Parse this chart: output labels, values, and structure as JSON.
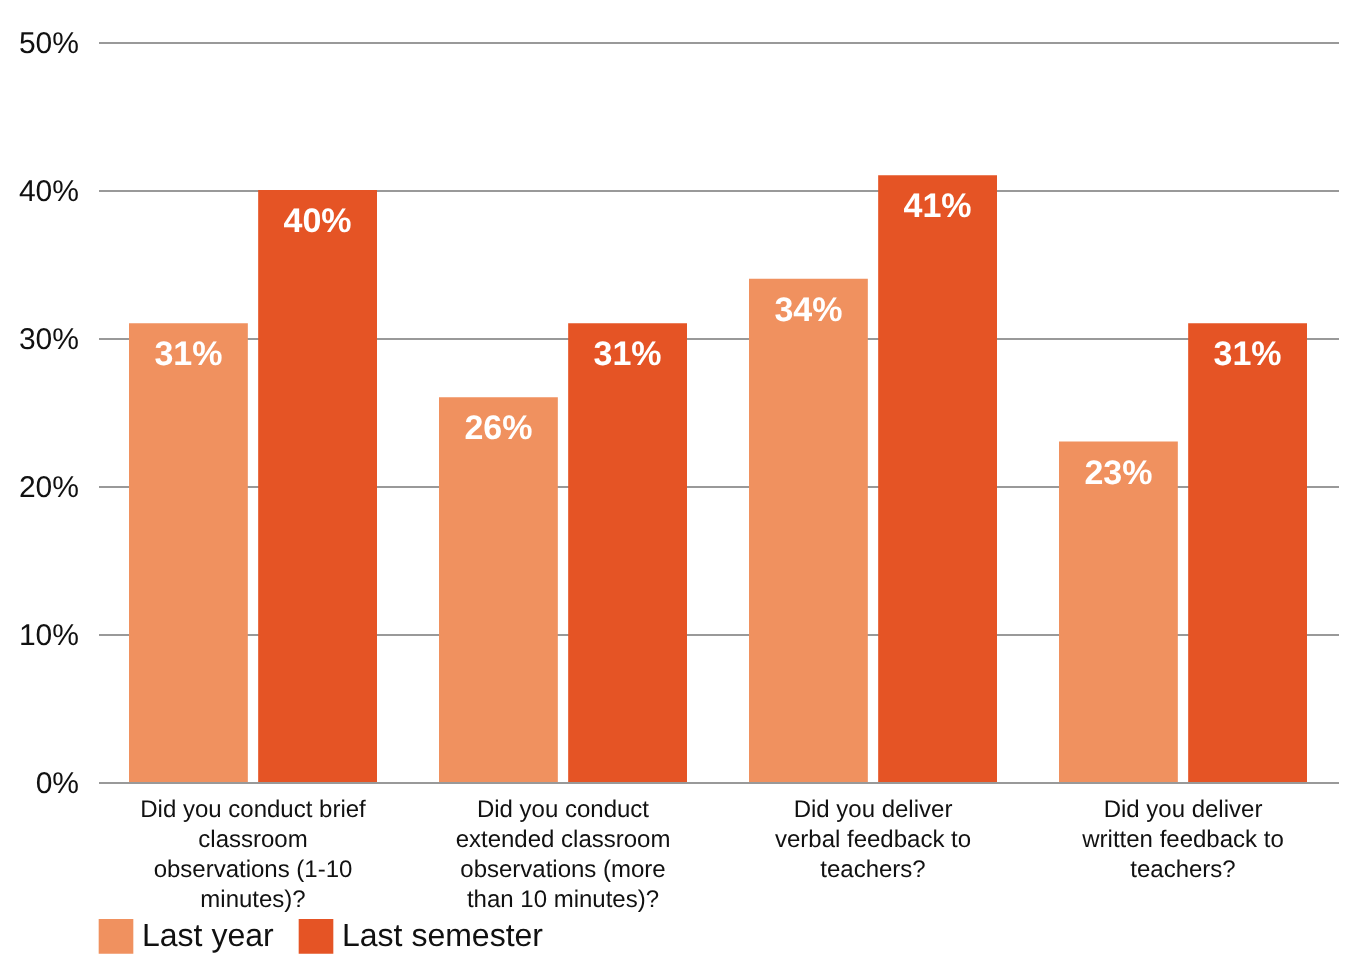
{
  "chart_data": {
    "type": "bar",
    "categories": [
      "Did you conduct brief classroom observations (1-10 minutes)?",
      "Did you conduct extended classroom observations (more than 10 minutes)?",
      "Did you deliver verbal feedback to teachers?",
      "Did you deliver written feedback to teachers?"
    ],
    "series": [
      {
        "name": "Last year",
        "color": "#f0915f",
        "values": [
          31,
          26,
          34,
          23
        ],
        "value_labels": [
          "31%",
          "26%",
          "34%",
          "23%"
        ]
      },
      {
        "name": "Last semester",
        "color": "#e55425",
        "values": [
          40,
          31,
          41,
          31
        ],
        "value_labels": [
          "40%",
          "31%",
          "41%",
          "31%"
        ]
      }
    ],
    "ylim": [
      0,
      50
    ],
    "yticks": [
      {
        "value": 0,
        "label": "0%"
      },
      {
        "value": 10,
        "label": "10%"
      },
      {
        "value": 20,
        "label": "20%"
      },
      {
        "value": 30,
        "label": "30%"
      },
      {
        "value": 40,
        "label": "40%"
      },
      {
        "value": 50,
        "label": "50%"
      }
    ],
    "grid": "y",
    "legend": "bottom"
  }
}
